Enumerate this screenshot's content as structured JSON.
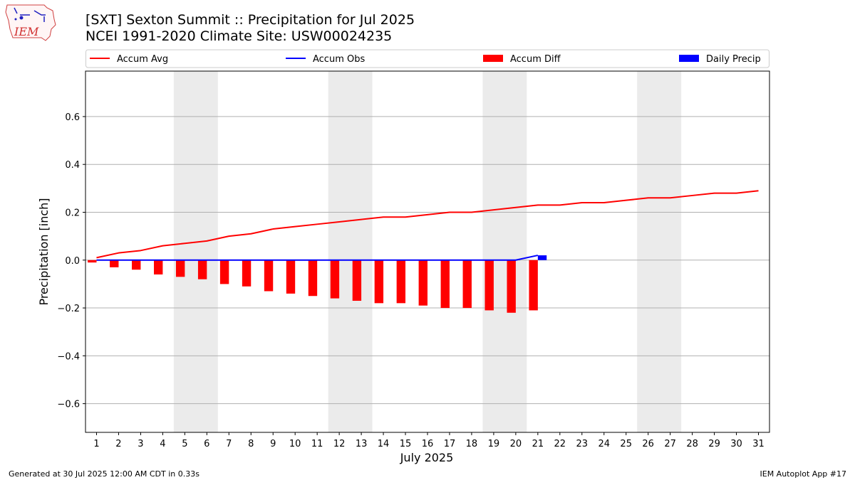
{
  "title": "[SXT] Sexton Summit :: Precipitation for Jul 2025",
  "subtitle": "NCEI 1991-2020 Climate Site: USW00024235",
  "logo_text": "IEM",
  "footer": {
    "left": "Generated at 30 Jul 2025 12:00 AM CDT in 0.33s",
    "right": "IEM Autoplot App #17"
  },
  "chart_data": {
    "type": "bar",
    "xlabel": "July 2025",
    "ylabel": "Precipitation [inch]",
    "ylim": [
      -0.72,
      0.79
    ],
    "xlim": [
      0.5,
      31.5
    ],
    "yticks": [
      -0.6,
      -0.4,
      -0.2,
      0.0,
      0.2,
      0.4,
      0.6
    ],
    "ytick_labels": [
      "−0.6",
      "−0.4",
      "−0.2",
      "0.0",
      "0.2",
      "0.4",
      "0.6"
    ],
    "days": [
      1,
      2,
      3,
      4,
      5,
      6,
      7,
      8,
      9,
      10,
      11,
      12,
      13,
      14,
      15,
      16,
      17,
      18,
      19,
      20,
      21,
      22,
      23,
      24,
      25,
      26,
      27,
      28,
      29,
      30,
      31
    ],
    "weekend_shading": [
      [
        4.5,
        6.5
      ],
      [
        11.5,
        13.5
      ],
      [
        18.5,
        20.5
      ],
      [
        25.5,
        27.5
      ]
    ],
    "grid": "horizontal",
    "legend": {
      "placement": "top",
      "entries": [
        "Accum Avg",
        "Accum Obs",
        "Accum Diff",
        "Daily Precip"
      ]
    },
    "series": [
      {
        "name": "Accum Avg",
        "type": "line",
        "color": "#ff0000",
        "x": [
          1,
          2,
          3,
          4,
          5,
          6,
          7,
          8,
          9,
          10,
          11,
          12,
          13,
          14,
          15,
          16,
          17,
          18,
          19,
          20,
          21,
          22,
          23,
          24,
          25,
          26,
          27,
          28,
          29,
          30,
          31
        ],
        "values": [
          0.01,
          0.03,
          0.04,
          0.06,
          0.07,
          0.08,
          0.1,
          0.11,
          0.13,
          0.14,
          0.15,
          0.16,
          0.17,
          0.18,
          0.18,
          0.19,
          0.2,
          0.2,
          0.21,
          0.22,
          0.23,
          0.23,
          0.24,
          0.24,
          0.25,
          0.26,
          0.26,
          0.27,
          0.28,
          0.28,
          0.29
        ]
      },
      {
        "name": "Accum Obs",
        "type": "line",
        "color": "#0000ff",
        "x": [
          1,
          2,
          3,
          4,
          5,
          6,
          7,
          8,
          9,
          10,
          11,
          12,
          13,
          14,
          15,
          16,
          17,
          18,
          19,
          20,
          21
        ],
        "values": [
          0,
          0,
          0,
          0,
          0,
          0,
          0,
          0,
          0,
          0,
          0,
          0,
          0,
          0,
          0,
          0,
          0,
          0,
          0,
          0,
          0.02
        ]
      },
      {
        "name": "Accum Diff",
        "type": "bar",
        "color": "#ff0000",
        "x": [
          1,
          2,
          3,
          4,
          5,
          6,
          7,
          8,
          9,
          10,
          11,
          12,
          13,
          14,
          15,
          16,
          17,
          18,
          19,
          20,
          21
        ],
        "values": [
          -0.01,
          -0.03,
          -0.04,
          -0.06,
          -0.07,
          -0.08,
          -0.1,
          -0.11,
          -0.13,
          -0.14,
          -0.15,
          -0.16,
          -0.17,
          -0.18,
          -0.18,
          -0.19,
          -0.2,
          -0.2,
          -0.21,
          -0.22,
          -0.21
        ]
      },
      {
        "name": "Daily Precip",
        "type": "bar",
        "color": "#0000ff",
        "x": [
          1,
          2,
          3,
          4,
          5,
          6,
          7,
          8,
          9,
          10,
          11,
          12,
          13,
          14,
          15,
          16,
          17,
          18,
          19,
          20,
          21
        ],
        "values": [
          0,
          0,
          0,
          0,
          0,
          0,
          0,
          0,
          0,
          0,
          0,
          0,
          0,
          0,
          0,
          0,
          0,
          0,
          0,
          0,
          0.02
        ]
      }
    ]
  }
}
